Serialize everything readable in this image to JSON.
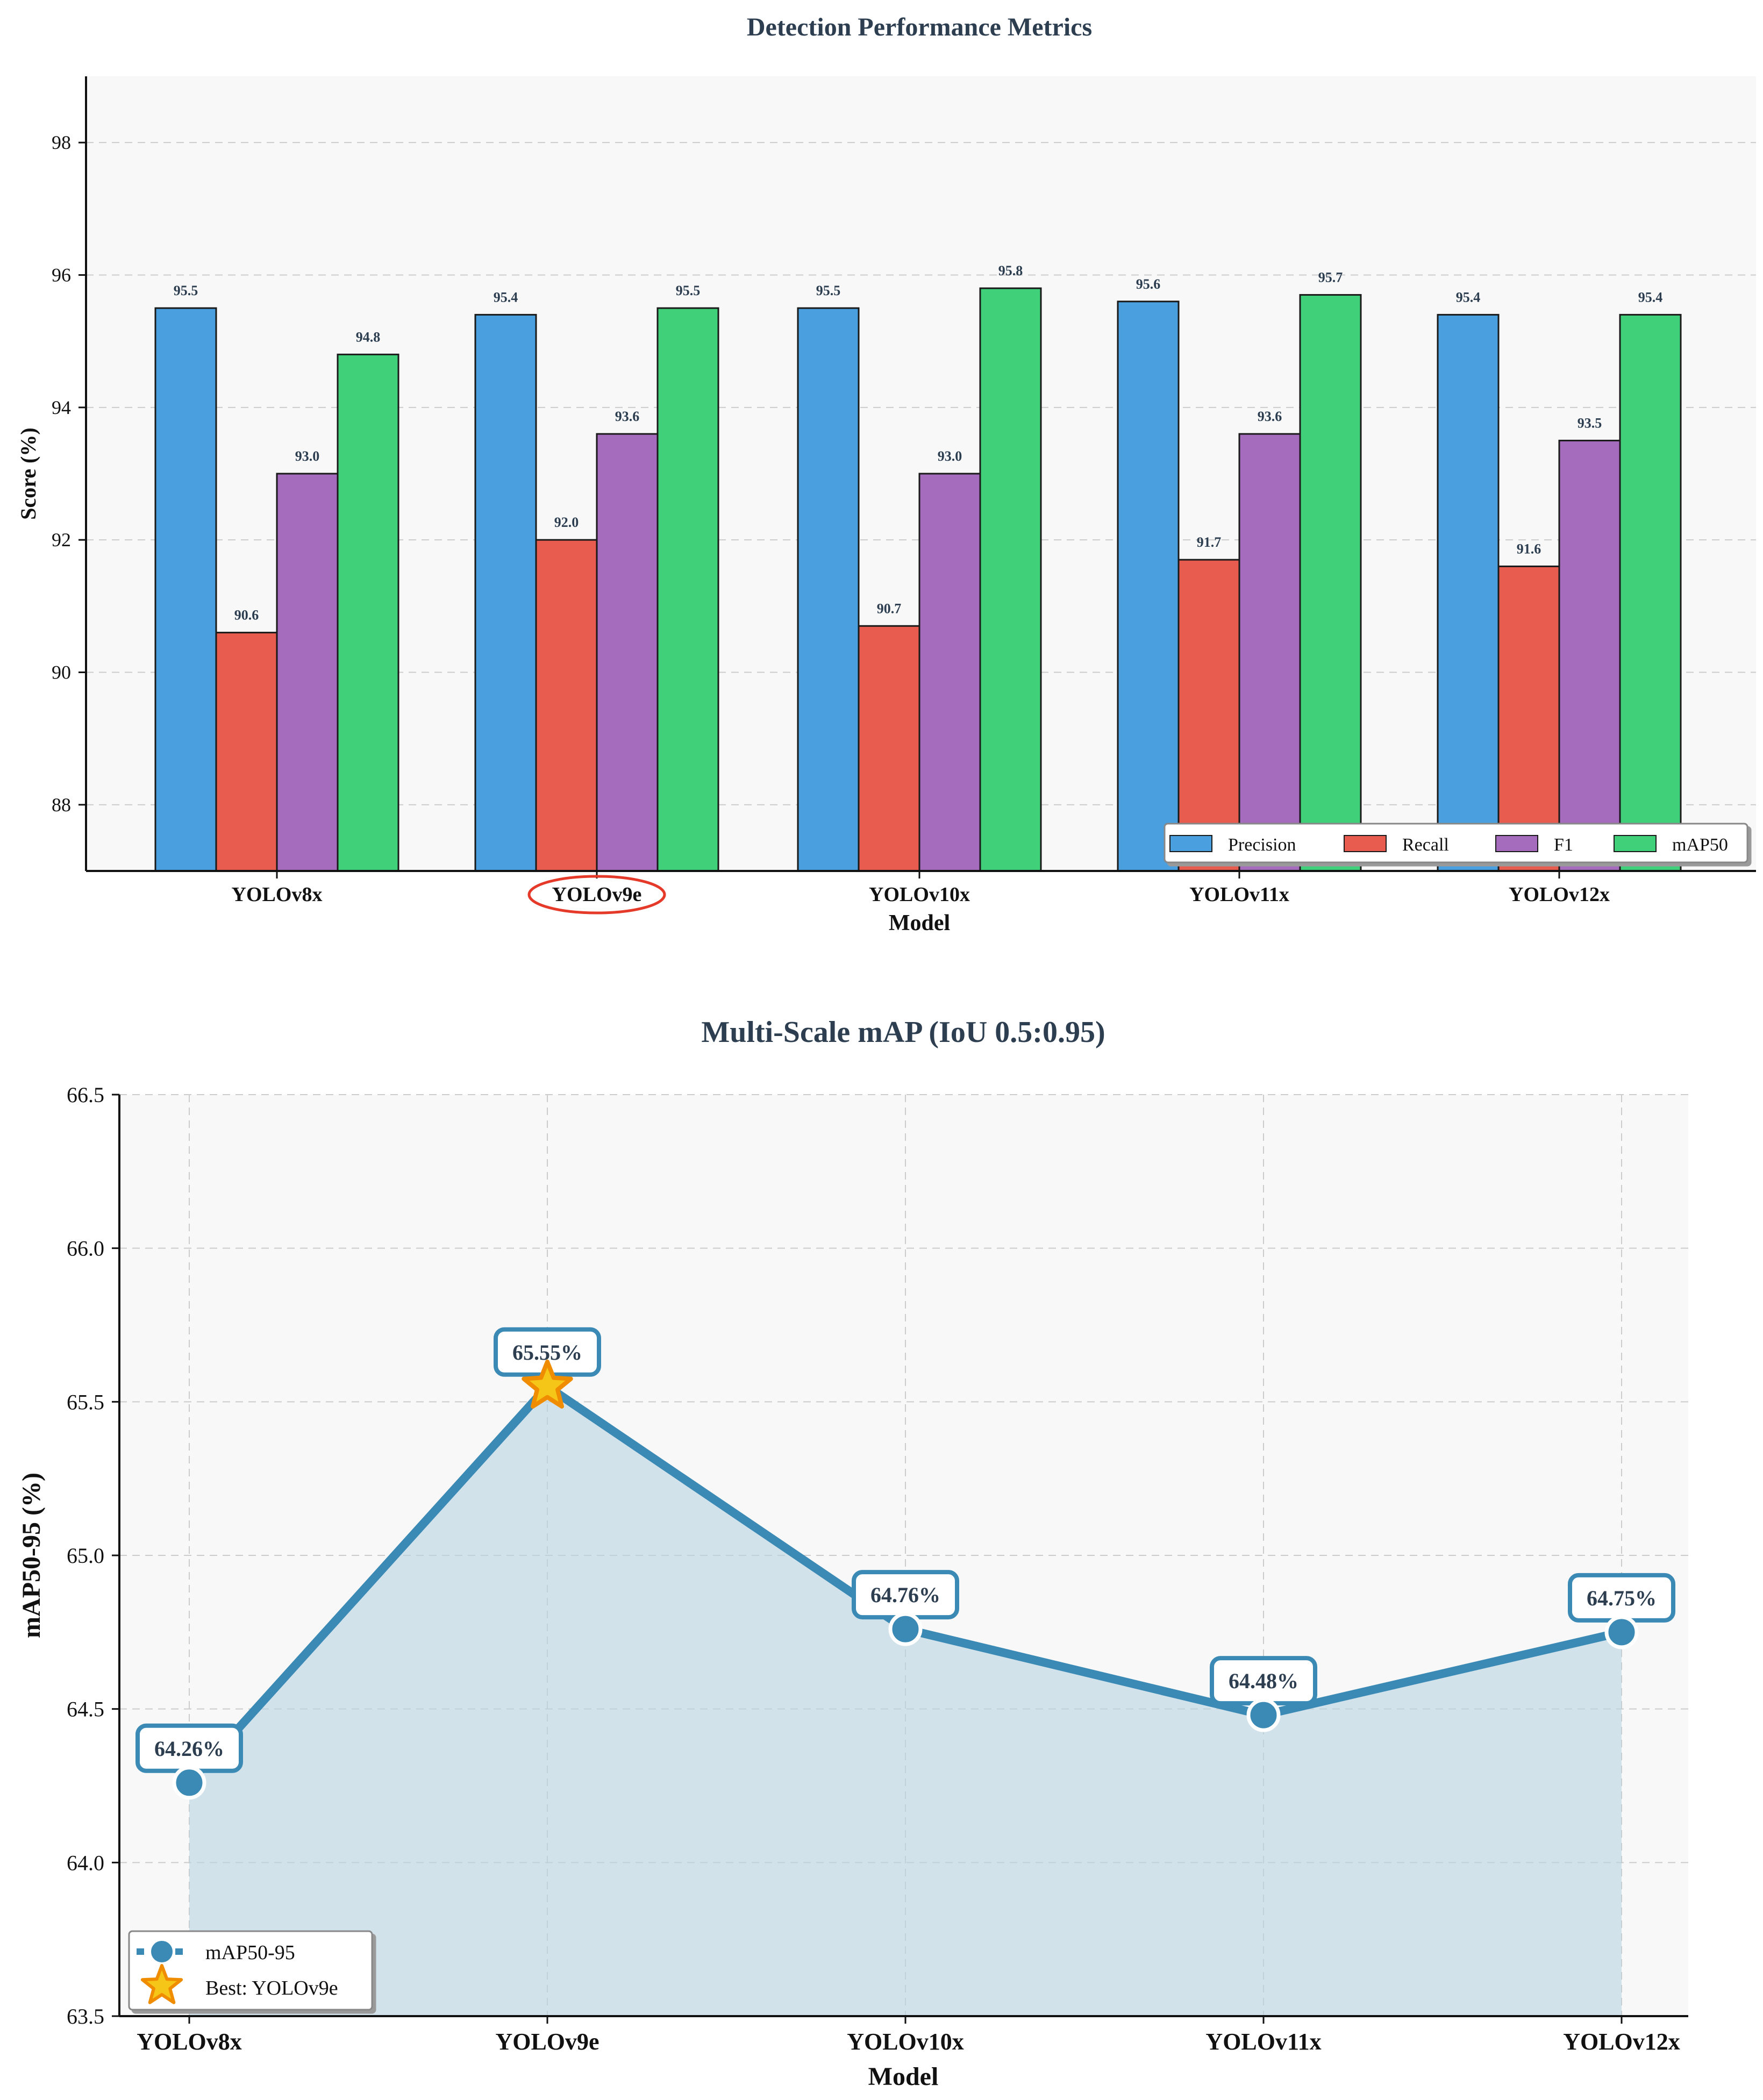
{
  "chart_data": [
    {
      "type": "bar",
      "title": "Detection Performance Metrics",
      "xlabel": "Model",
      "ylabel": "Score (%)",
      "ylim": [
        87,
        99
      ],
      "yticks": [
        88,
        90,
        92,
        94,
        96,
        98
      ],
      "grid": "y-dashed",
      "categories": [
        "YOLOv8x",
        "YOLOv9e",
        "YOLOv10x",
        "YOLOv11x",
        "YOLOv12x"
      ],
      "highlighted_category": "YOLOv9e",
      "series": [
        {
          "name": "Precision",
          "color": "#4a9fdf",
          "values": [
            95.5,
            95.4,
            95.5,
            95.6,
            95.4
          ]
        },
        {
          "name": "Recall",
          "color": "#e85c50",
          "values": [
            90.6,
            92.0,
            90.7,
            91.7,
            91.6
          ]
        },
        {
          "name": "F1",
          "color": "#a56bbd",
          "values": [
            93.0,
            93.6,
            93.0,
            93.6,
            93.5
          ]
        },
        {
          "name": "mAP50",
          "color": "#40d07a",
          "values": [
            94.8,
            95.5,
            95.8,
            95.7,
            95.4
          ]
        }
      ],
      "legend_position": "lower-right"
    },
    {
      "type": "line",
      "title": "Multi-Scale mAP (IoU 0.5:0.95)",
      "xlabel": "Model",
      "ylabel": "mAP50-95 (%)",
      "ylim": [
        63.5,
        66.5
      ],
      "yticks": [
        "63.5",
        "64.0",
        "64.5",
        "65.0",
        "65.5",
        "66.0",
        "66.5"
      ],
      "grid": "dashed",
      "categories": [
        "YOLOv8x",
        "YOLOv9e",
        "YOLOv10x",
        "YOLOv11x",
        "YOLOv12x"
      ],
      "series": [
        {
          "name": "mAP50-95",
          "color": "#3a8ab5",
          "values": [
            64.26,
            65.55,
            64.76,
            64.48,
            64.75
          ]
        }
      ],
      "point_labels": [
        "64.26%",
        "65.55%",
        "64.76%",
        "64.48%",
        "64.75%"
      ],
      "best": {
        "label": "Best: YOLOv9e",
        "category": "YOLOv9e",
        "value": 65.55,
        "color": "#f5a623"
      },
      "legend_position": "lower-left"
    }
  ]
}
